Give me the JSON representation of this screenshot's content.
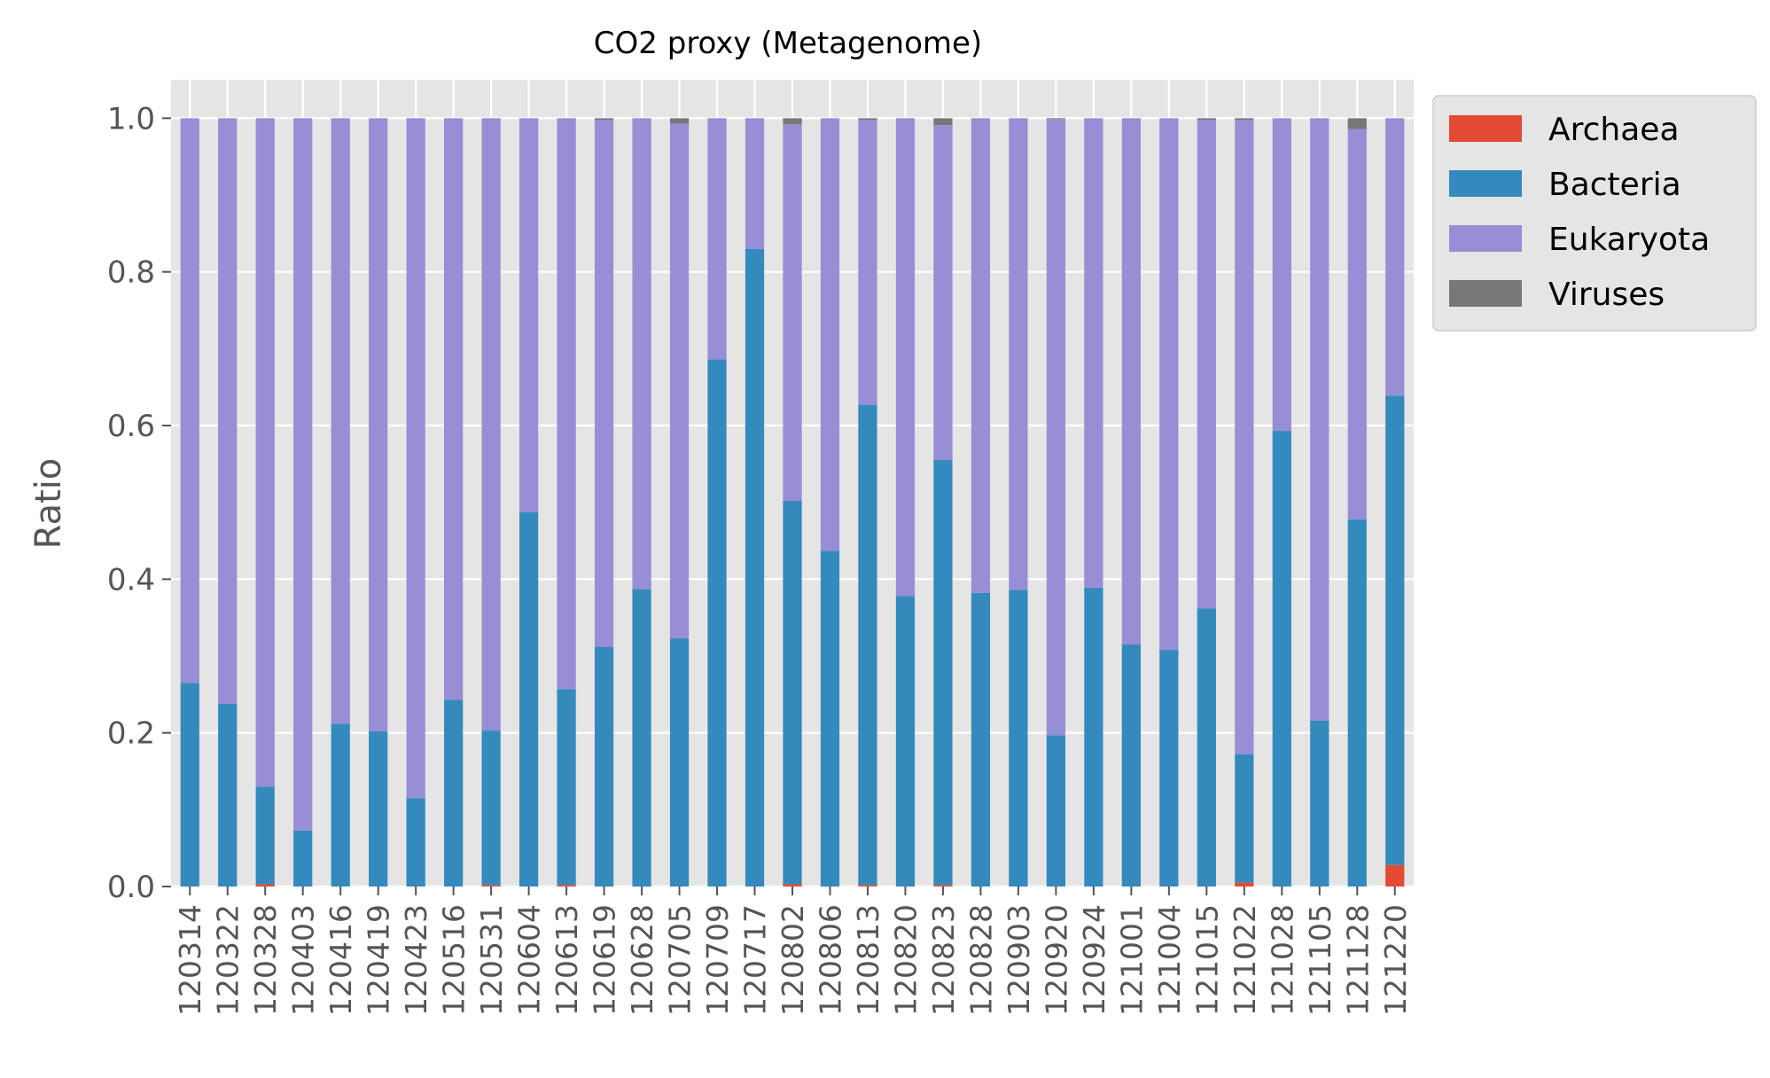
{
  "chart_data": {
    "type": "bar",
    "stacked": true,
    "title": "CO2 proxy (Metagenome)",
    "xlabel": "",
    "ylabel": "Ratio",
    "ylim": [
      0,
      1.05
    ],
    "yticks": [
      "0.0",
      "0.2",
      "0.4",
      "0.6",
      "0.8",
      "1.0"
    ],
    "grid": true,
    "legend_position": "outside-upper-right",
    "categories": [
      "120314",
      "120322",
      "120328",
      "120403",
      "120416",
      "120419",
      "120423",
      "120516",
      "120531",
      "120604",
      "120613",
      "120619",
      "120628",
      "120705",
      "120709",
      "120717",
      "120802",
      "120806",
      "120813",
      "120820",
      "120823",
      "120828",
      "120903",
      "120920",
      "120924",
      "121001",
      "121004",
      "121015",
      "121022",
      "121028",
      "121105",
      "121128",
      "121220"
    ],
    "series": [
      {
        "name": "Archaea",
        "color": "#E24A33",
        "values": [
          0.0,
          0.0,
          0.003,
          0.0,
          0.0,
          0.0,
          0.0,
          0.0,
          0.002,
          0.0,
          0.002,
          0.0,
          0.0,
          0.0,
          0.0,
          0.0,
          0.003,
          0.0,
          0.002,
          0.0,
          0.002,
          0.0,
          0.0,
          0.0,
          0.0,
          0.0,
          0.0,
          0.0,
          0.005,
          0.0,
          0.0,
          0.0,
          0.028
        ]
      },
      {
        "name": "Bacteria",
        "color": "#348ABD",
        "values": [
          0.265,
          0.238,
          0.127,
          0.073,
          0.212,
          0.202,
          0.115,
          0.243,
          0.201,
          0.487,
          0.255,
          0.312,
          0.387,
          0.323,
          0.686,
          0.83,
          0.499,
          0.437,
          0.625,
          0.378,
          0.553,
          0.382,
          0.386,
          0.197,
          0.389,
          0.315,
          0.308,
          0.362,
          0.167,
          0.593,
          0.216,
          0.478,
          0.611
        ]
      },
      {
        "name": "Eukaryota",
        "color": "#988ED5",
        "values": [
          0.735,
          0.762,
          0.87,
          0.927,
          0.788,
          0.798,
          0.885,
          0.757,
          0.797,
          0.513,
          0.743,
          0.686,
          0.613,
          0.67,
          0.314,
          0.17,
          0.49,
          0.563,
          0.371,
          0.622,
          0.436,
          0.618,
          0.614,
          0.802,
          0.611,
          0.685,
          0.692,
          0.636,
          0.826,
          0.407,
          0.784,
          0.508,
          0.361
        ]
      },
      {
        "name": "Viruses",
        "color": "#777777",
        "values": [
          0.0,
          0.0,
          0.0,
          0.0,
          0.0,
          0.0,
          0.0,
          0.0,
          0.0,
          0.0,
          0.0,
          0.002,
          0.0,
          0.007,
          0.0,
          0.0,
          0.008,
          0.0,
          0.002,
          0.0,
          0.009,
          0.0,
          0.0,
          0.001,
          0.0,
          0.0,
          0.0,
          0.002,
          0.002,
          0.0,
          0.0,
          0.014,
          0.0
        ]
      }
    ]
  }
}
